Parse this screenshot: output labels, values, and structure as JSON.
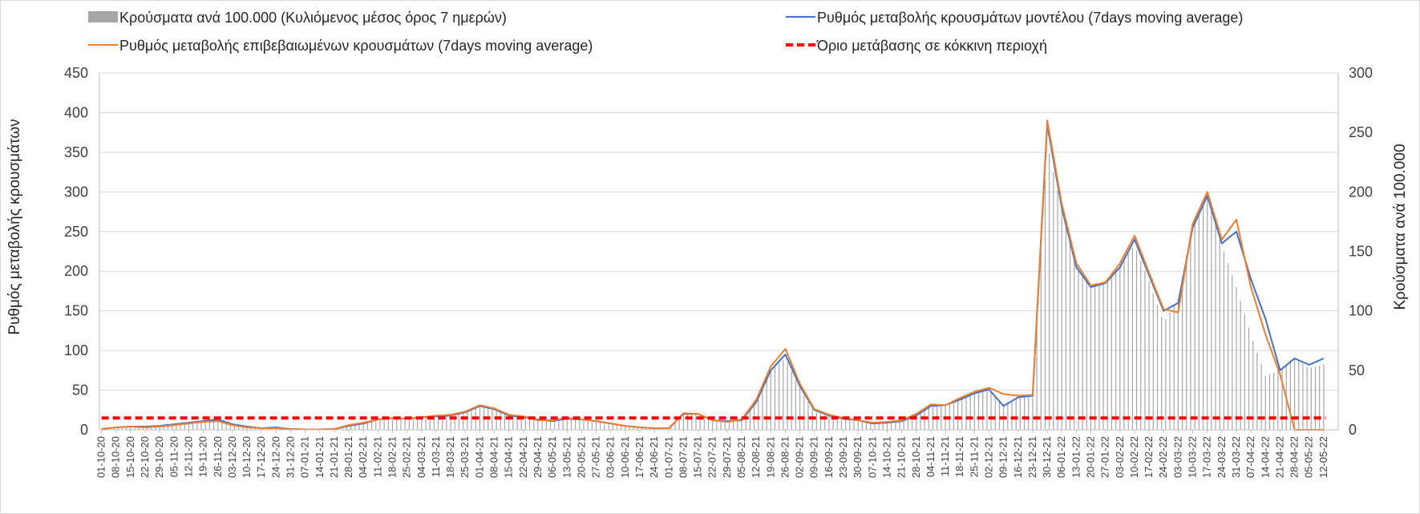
{
  "chart_data": {
    "type": "bar",
    "title": "",
    "y_left_label": "Ρυθμός μεταβολής κρουσμάτων",
    "y_right_label": "Κρούσματα ανά 100.000",
    "y_left_lim": [
      0,
      450
    ],
    "y_left_ticks": [
      0,
      50,
      100,
      150,
      200,
      250,
      300,
      350,
      400,
      450
    ],
    "y_right_lim": [
      0,
      300
    ],
    "y_right_ticks": [
      0,
      50,
      100,
      150,
      200,
      250,
      300
    ],
    "grid": true,
    "legend_position": "top",
    "start_date": "01-10-20",
    "x_tick_labels": [
      "01-10-20",
      "08-10-20",
      "15-10-20",
      "22-10-20",
      "29-10-20",
      "05-11-20",
      "12-11-20",
      "19-11-20",
      "26-11-20",
      "03-12-20",
      "10-12-20",
      "17-12-20",
      "24-12-20",
      "31-12-20",
      "07-01-21",
      "14-01-21",
      "21-01-21",
      "28-01-21",
      "04-02-21",
      "11-02-21",
      "18-02-21",
      "25-02-21",
      "04-03-21",
      "11-03-21",
      "18-03-21",
      "25-03-21",
      "01-04-21",
      "08-04-21",
      "15-04-21",
      "22-04-21",
      "29-04-21",
      "06-05-21",
      "13-05-21",
      "20-05-21",
      "27-05-21",
      "03-06-21",
      "10-06-21",
      "17-06-21",
      "24-06-21",
      "01-07-21",
      "08-07-21",
      "15-07-21",
      "22-07-21",
      "29-07-21",
      "05-08-21",
      "12-08-21",
      "19-08-21",
      "26-08-21",
      "02-09-21",
      "09-09-21",
      "16-09-21",
      "23-09-21",
      "30-09-21",
      "07-10-21",
      "14-10-21",
      "21-10-21",
      "28-10-21",
      "04-11-21",
      "11-11-21",
      "18-11-21",
      "25-11-21",
      "02-12-21",
      "09-12-21",
      "16-12-21",
      "23-12-21",
      "30-12-21",
      "06-01-22",
      "13-01-22",
      "20-01-22",
      "27-01-22",
      "03-02-22",
      "10-02-22",
      "17-02-22",
      "24-02-22",
      "03-03-22",
      "10-03-22",
      "17-03-22",
      "24-03-22",
      "31-03-22",
      "07-04-22",
      "14-04-22",
      "21-04-22",
      "28-04-22",
      "05-05-22",
      "12-05-22"
    ],
    "bar_series": {
      "name": "Κρούσματα ανά 100.000 (Κυλιόμενος μέσος όρος 7 ημερών)",
      "axis": "right",
      "color": "#a6a6a6",
      "x": [
        1,
        8,
        15,
        22,
        29,
        36,
        43,
        50,
        57,
        64,
        71,
        78,
        85,
        92,
        99,
        106,
        113,
        120,
        127,
        134,
        141,
        148,
        155,
        162,
        169,
        176,
        183,
        190,
        197,
        204,
        211,
        218,
        225,
        232,
        239,
        246,
        253,
        260,
        267,
        274,
        281,
        288,
        295,
        302,
        309,
        316,
        323,
        330,
        337,
        344,
        351,
        358,
        365,
        372,
        379,
        386,
        393,
        400,
        407,
        414,
        421,
        428,
        435,
        442,
        449,
        456,
        463,
        470,
        477,
        484,
        491,
        498,
        505,
        512,
        519,
        526,
        533,
        540,
        547,
        554,
        561,
        568,
        575,
        582,
        589
      ],
      "values": [
        0.5,
        1.5,
        2,
        2,
        3,
        4,
        5.5,
        7,
        8,
        5,
        3,
        2,
        2,
        1,
        0.5,
        0.3,
        0.5,
        3,
        5,
        8,
        10,
        9,
        10,
        11,
        12,
        15,
        20,
        17,
        12,
        10,
        8,
        7,
        9,
        8,
        7,
        5,
        3,
        2,
        1,
        1,
        13,
        13,
        8,
        7,
        8,
        22,
        50,
        60,
        35,
        15,
        12,
        9,
        8,
        5,
        6,
        7,
        12,
        20,
        20,
        25,
        30,
        33,
        22,
        27,
        28,
        240,
        185,
        135,
        120,
        125,
        140,
        155,
        125,
        90,
        110,
        175,
        195,
        155,
        120,
        80,
        45,
        50,
        60,
        52,
        55
      ]
    },
    "series": [
      {
        "name": "Ρυθμός μεταβολής κρουσμάτων μοντέλου (7days moving average)",
        "axis": "left",
        "color": "#4472c4",
        "x": [
          1,
          8,
          15,
          22,
          29,
          36,
          43,
          50,
          57,
          64,
          71,
          78,
          85,
          92,
          99,
          106,
          113,
          120,
          127,
          134,
          141,
          148,
          155,
          162,
          169,
          176,
          183,
          190,
          197,
          204,
          211,
          218,
          225,
          232,
          239,
          246,
          253,
          260,
          267,
          274,
          281,
          288,
          295,
          302,
          309,
          316,
          323,
          330,
          337,
          344,
          351,
          358,
          365,
          372,
          379,
          386,
          393,
          400,
          407,
          414,
          421,
          428,
          435,
          442,
          449,
          456,
          463,
          470,
          477,
          484,
          491,
          498,
          505,
          512,
          519,
          526,
          533,
          540,
          547,
          554,
          561,
          568,
          575,
          582,
          589
        ],
        "values": [
          1,
          3,
          4,
          4,
          5,
          7,
          9,
          11,
          13,
          7,
          4,
          2,
          3,
          1,
          0.5,
          0.5,
          1,
          5,
          8,
          13,
          15,
          14,
          16,
          17,
          18,
          22,
          30,
          26,
          18,
          16,
          13,
          11,
          14,
          13,
          11,
          8,
          5,
          3,
          2,
          2,
          20,
          20,
          12,
          11,
          12,
          35,
          75,
          95,
          55,
          25,
          18,
          14,
          12,
          8,
          9,
          11,
          18,
          30,
          31,
          38,
          46,
          51,
          30,
          41,
          43,
          385,
          280,
          205,
          180,
          185,
          205,
          240,
          195,
          150,
          160,
          255,
          295,
          235,
          250,
          190,
          140,
          75,
          90,
          82,
          90
        ]
      },
      {
        "name": "Ρυθμός μεταβολής επιβεβαιωμένων κρουσμάτων (7days moving average)",
        "axis": "left",
        "color": "#ed7d31",
        "x": [
          1,
          8,
          15,
          22,
          29,
          36,
          43,
          50,
          57,
          64,
          71,
          78,
          85,
          92,
          99,
          106,
          113,
          120,
          127,
          134,
          141,
          148,
          155,
          162,
          169,
          176,
          183,
          190,
          197,
          204,
          211,
          218,
          225,
          232,
          239,
          246,
          253,
          260,
          267,
          274,
          281,
          288,
          295,
          302,
          309,
          316,
          323,
          330,
          337,
          344,
          351,
          358,
          365,
          372,
          379,
          386,
          393,
          400,
          407,
          414,
          421,
          428,
          435,
          442,
          449,
          456,
          463,
          470,
          477,
          484,
          491,
          498,
          505,
          512,
          519,
          526,
          533,
          540,
          547,
          554,
          561,
          568,
          575,
          582,
          589
        ],
        "values": [
          1,
          3,
          4,
          3,
          4,
          6,
          8,
          10,
          11,
          6,
          3,
          2,
          2,
          1,
          0.5,
          0.5,
          1,
          6,
          9,
          13,
          15,
          14,
          16,
          18,
          19,
          23,
          31,
          27,
          19,
          17,
          12,
          12,
          15,
          13,
          11,
          8,
          5,
          3,
          2,
          2,
          21,
          20,
          12,
          10,
          13,
          38,
          80,
          102,
          58,
          26,
          19,
          15,
          12,
          9,
          10,
          12,
          20,
          32,
          31,
          40,
          48,
          53,
          45,
          43,
          44,
          390,
          285,
          210,
          182,
          186,
          210,
          245,
          198,
          152,
          148,
          260,
          300,
          240,
          265,
          180,
          120,
          70,
          0,
          0,
          0
        ]
      },
      {
        "name": "Όριο μετάβασης σε κόκκινη περιοχή",
        "axis": "left",
        "color": "#ff0000",
        "dashed": true,
        "x": [
          1,
          590
        ],
        "values": [
          15,
          15
        ]
      }
    ]
  }
}
